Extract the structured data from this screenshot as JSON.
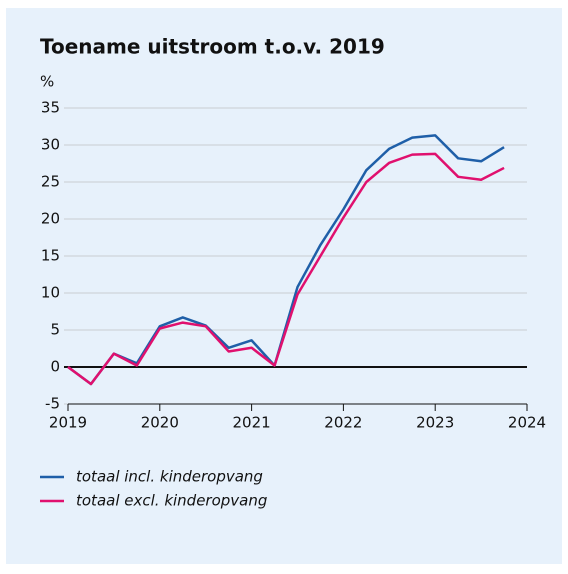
{
  "chart_data": {
    "type": "line",
    "title": "Toename uitstroom t.o.v. 2019",
    "y_label": "%",
    "x": [
      2019,
      2019.25,
      2019.5,
      2019.75,
      2020,
      2020.25,
      2020.5,
      2020.75,
      2021,
      2021.25,
      2021.5,
      2021.75,
      2022,
      2022.25,
      2022.5,
      2022.75,
      2023,
      2023.25,
      2023.5,
      2023.75
    ],
    "series": [
      {
        "name": "totaal incl. kinderopvang",
        "color": "#1f5fa8",
        "values": [
          0,
          -2.3,
          1.8,
          0.5,
          5.5,
          6.7,
          5.6,
          2.6,
          3.6,
          0.2,
          10.8,
          16.5,
          21.3,
          26.6,
          29.5,
          31.0,
          31.3,
          28.2,
          27.8,
          29.7
        ]
      },
      {
        "name": "totaal excl. kinderopvang",
        "color": "#e0106e",
        "values": [
          0,
          -2.3,
          1.8,
          0.2,
          5.2,
          6.0,
          5.5,
          2.1,
          2.6,
          0.2,
          9.8,
          15.0,
          20.2,
          25.0,
          27.6,
          28.7,
          28.8,
          25.7,
          25.3,
          26.9
        ]
      }
    ],
    "xlim": [
      2019,
      2024
    ],
    "xticks": [
      2019,
      2020,
      2021,
      2022,
      2023,
      2024
    ],
    "ylim": [
      -5,
      35
    ],
    "yticks": [
      -5,
      0,
      5,
      10,
      15,
      20,
      25,
      30,
      35
    ],
    "grid": true
  }
}
